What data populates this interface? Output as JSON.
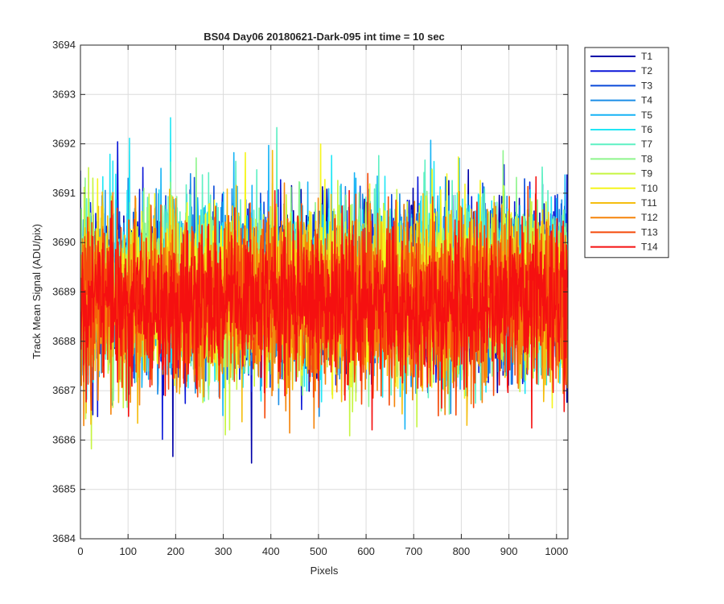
{
  "chart_data": {
    "type": "line",
    "title": "BS04 Day06 20180621-Dark-095 int time = 10 sec",
    "xlabel": "Pixels",
    "ylabel": "Track Mean Signal (ADU/pix)",
    "xlim": [
      0,
      1024
    ],
    "ylim": [
      3684,
      3694
    ],
    "xticks": [
      0,
      100,
      200,
      300,
      400,
      500,
      600,
      700,
      800,
      900,
      1000
    ],
    "yticks": [
      3684,
      3685,
      3686,
      3687,
      3688,
      3689,
      3690,
      3691,
      3692,
      3693,
      3694
    ],
    "grid": true,
    "legend_position": "outside-top-right",
    "n_points_per_series": 1024,
    "series": [
      {
        "name": "T1",
        "color": "#0000a8",
        "mean": 3689.1,
        "spread": 1.0
      },
      {
        "name": "T2",
        "color": "#0a16d8",
        "mean": 3689.1,
        "spread": 1.0
      },
      {
        "name": "T3",
        "color": "#0a4ad9",
        "mean": 3689.1,
        "spread": 1.0
      },
      {
        "name": "T4",
        "color": "#1b8ee6",
        "mean": 3689.1,
        "spread": 1.0
      },
      {
        "name": "T5",
        "color": "#16b3f5",
        "mean": 3689.1,
        "spread": 1.0
      },
      {
        "name": "T6",
        "color": "#22e6f5",
        "mean": 3689.1,
        "spread": 1.0
      },
      {
        "name": "T7",
        "color": "#5ef0c3",
        "mean": 3689.1,
        "spread": 1.0
      },
      {
        "name": "T8",
        "color": "#8ef58c",
        "mean": 3689.0,
        "spread": 1.0
      },
      {
        "name": "T9",
        "color": "#c6f542",
        "mean": 3689.0,
        "spread": 1.0
      },
      {
        "name": "T10",
        "color": "#f5f51d",
        "mean": 3689.0,
        "spread": 1.0
      },
      {
        "name": "T11",
        "color": "#f5be10",
        "mean": 3688.9,
        "spread": 1.0
      },
      {
        "name": "T12",
        "color": "#f5840a",
        "mean": 3688.8,
        "spread": 1.0
      },
      {
        "name": "T13",
        "color": "#f54a0a",
        "mean": 3688.8,
        "spread": 1.0
      },
      {
        "name": "T14",
        "color": "#f51010",
        "mean": 3688.7,
        "spread": 0.9
      }
    ]
  }
}
